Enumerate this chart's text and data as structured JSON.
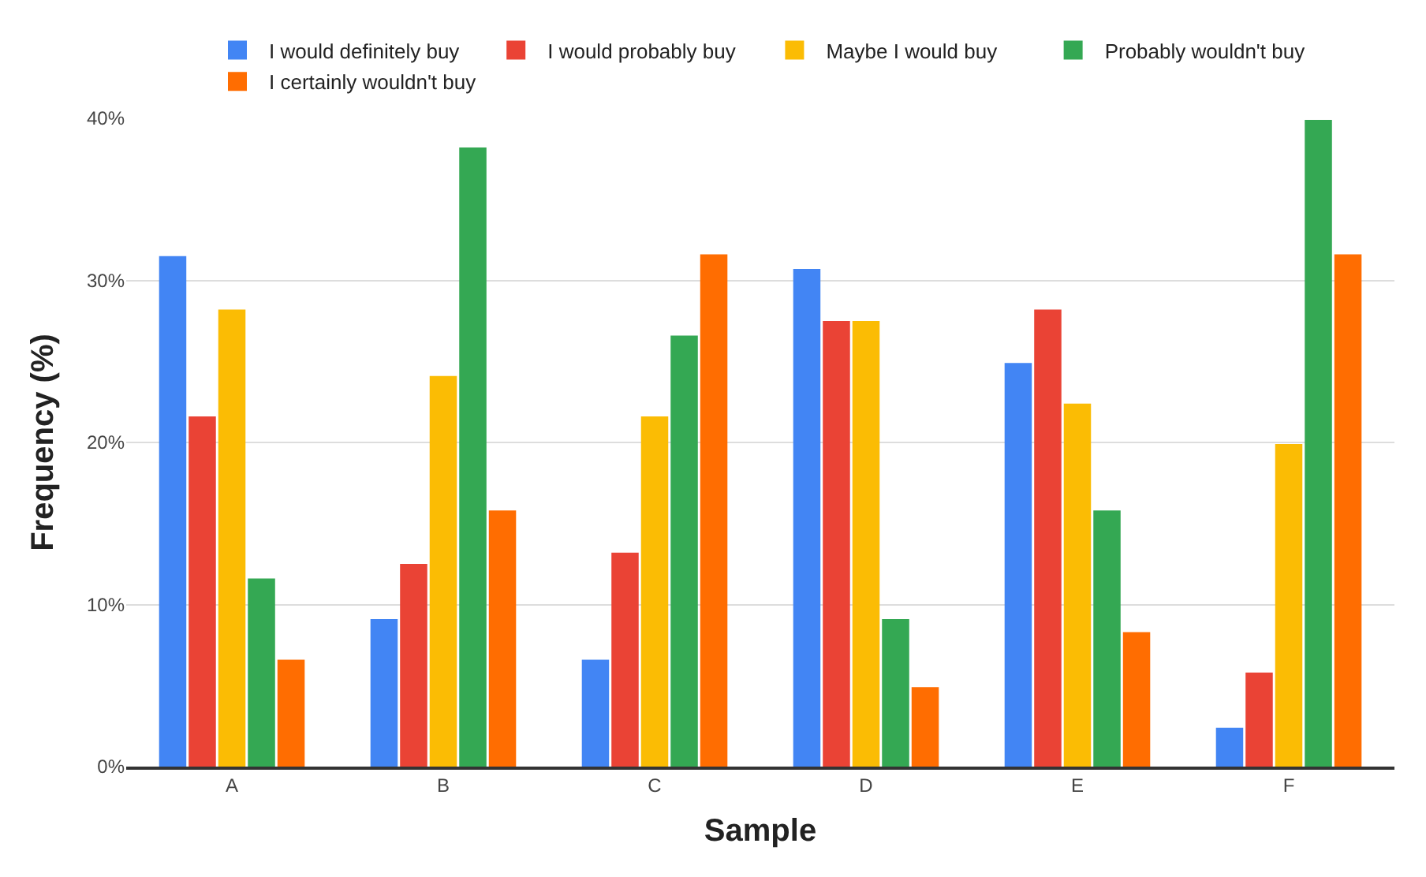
{
  "chart_data": {
    "type": "bar",
    "xlabel": "Sample",
    "ylabel": "Frequency (%)",
    "categories": [
      "A",
      "B",
      "C",
      "D",
      "E",
      "F"
    ],
    "series": [
      {
        "name": "I would definitely buy",
        "color": "#4285f4",
        "values": [
          31.5,
          9.1,
          6.6,
          30.7,
          24.9,
          2.4
        ]
      },
      {
        "name": "I would probably buy",
        "color": "#ea4335",
        "values": [
          21.6,
          12.5,
          13.2,
          27.5,
          28.2,
          5.8
        ]
      },
      {
        "name": "Maybe I would buy",
        "color": "#fbbc04",
        "values": [
          28.2,
          24.1,
          21.6,
          27.5,
          22.4,
          19.9
        ]
      },
      {
        "name": "Probably wouldn't buy",
        "color": "#34a853",
        "values": [
          11.6,
          38.2,
          26.6,
          9.1,
          15.8,
          39.9
        ]
      },
      {
        "name": "I certainly wouldn't buy",
        "color": "#ff6d01",
        "values": [
          6.6,
          15.8,
          31.6,
          4.9,
          8.3,
          31.6
        ]
      }
    ],
    "ylim": [
      0,
      40
    ],
    "yticks": [
      {
        "value": 0,
        "label": "0%"
      },
      {
        "value": 10,
        "label": "10%"
      },
      {
        "value": 20,
        "label": "20%"
      },
      {
        "value": 30,
        "label": "30%"
      },
      {
        "value": 40,
        "label": "40%"
      }
    ],
    "grid": "y",
    "legend": "top"
  }
}
